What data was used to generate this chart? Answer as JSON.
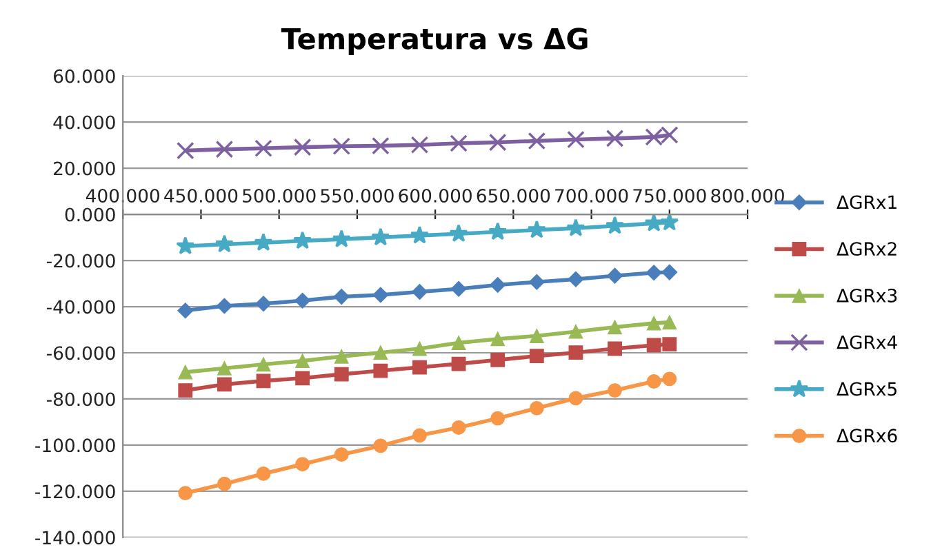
{
  "chart_data": {
    "type": "line",
    "title": "Temperatura vs ΔG",
    "x": [
      440,
      465,
      490,
      515,
      540,
      565,
      590,
      615,
      640,
      665,
      690,
      715,
      740,
      750
    ],
    "series": [
      {
        "name": "ΔGRx1",
        "color": "#4a7ebb",
        "marker": "diamond",
        "values": [
          -41.7,
          -39.7,
          -38.7,
          -37.4,
          -35.7,
          -34.9,
          -33.6,
          -32.3,
          -30.6,
          -29.3,
          -28.1,
          -26.6,
          -25.3,
          -25.1
        ]
      },
      {
        "name": "ΔGRx2",
        "color": "#be4b48",
        "marker": "square",
        "values": [
          -76.3,
          -73.7,
          -72.2,
          -71.0,
          -69.3,
          -67.8,
          -66.3,
          -64.8,
          -63.1,
          -61.4,
          -59.9,
          -58.2,
          -56.7,
          -56.3
        ]
      },
      {
        "name": "ΔGRx3",
        "color": "#98b954",
        "marker": "triangle",
        "values": [
          -68.4,
          -66.7,
          -65.0,
          -63.5,
          -61.6,
          -59.9,
          -58.2,
          -55.7,
          -54.0,
          -52.7,
          -50.8,
          -48.9,
          -47.2,
          -46.8
        ]
      },
      {
        "name": "ΔGRx4",
        "color": "#7d60a0",
        "marker": "cross",
        "values": [
          27.6,
          28.2,
          28.6,
          29.1,
          29.5,
          29.7,
          30.1,
          30.8,
          31.2,
          31.8,
          32.4,
          32.9,
          33.5,
          34.4
        ]
      },
      {
        "name": "ΔGRx5",
        "color": "#46aac5",
        "marker": "star",
        "values": [
          -13.8,
          -13.0,
          -12.3,
          -11.5,
          -10.8,
          -10.0,
          -9.2,
          -8.4,
          -7.6,
          -6.8,
          -6.0,
          -5.0,
          -3.9,
          -3.5
        ]
      },
      {
        "name": "ΔGRx6",
        "color": "#f79646",
        "marker": "circle",
        "values": [
          -120.8,
          -116.8,
          -112.4,
          -108.3,
          -104.1,
          -100.3,
          -95.8,
          -92.4,
          -88.4,
          -84.0,
          -79.7,
          -76.3,
          -72.4,
          -71.3
        ]
      }
    ],
    "xlim": [
      400,
      800
    ],
    "xticks": [
      {
        "value": 400,
        "label": "400.000"
      },
      {
        "value": 450,
        "label": "450.000"
      },
      {
        "value": 500,
        "label": "500.000"
      },
      {
        "value": 550,
        "label": "550.000"
      },
      {
        "value": 600,
        "label": "600.000"
      },
      {
        "value": 650,
        "label": "650.000"
      },
      {
        "value": 700,
        "label": "700.000"
      },
      {
        "value": 750,
        "label": "750.000"
      },
      {
        "value": 800,
        "label": "800.000"
      }
    ],
    "ylim": [
      -140,
      60
    ],
    "yticks": [
      {
        "value": -140,
        "label": "-140.000"
      },
      {
        "value": -120,
        "label": "-120.000"
      },
      {
        "value": -100,
        "label": "-100.000"
      },
      {
        "value": -80,
        "label": "-80.000"
      },
      {
        "value": -60,
        "label": "-60.000"
      },
      {
        "value": -40,
        "label": "-40.000"
      },
      {
        "value": -20,
        "label": "-20.000"
      },
      {
        "value": 0,
        "label": "0.000"
      },
      {
        "value": 20,
        "label": "20.000"
      },
      {
        "value": 40,
        "label": "40.000"
      },
      {
        "value": 60,
        "label": "60.000"
      }
    ],
    "grid": "y",
    "legend": "right",
    "line_style": "solid"
  }
}
